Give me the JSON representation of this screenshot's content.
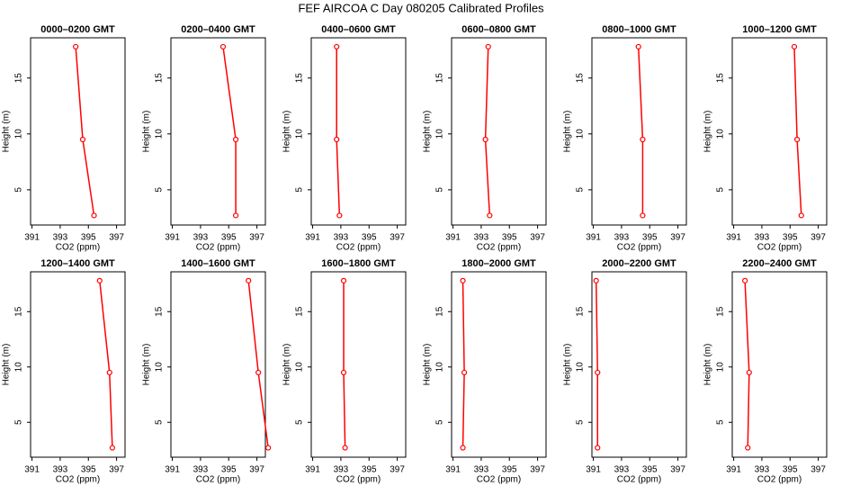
{
  "title": "FEF AIRCOA C  Day 080205  Calibrated Profiles",
  "chart_data": [
    {
      "type": "line",
      "title": "0000–0200 GMT",
      "xlabel": "CO2 (ppm)",
      "ylabel": "Height (m)",
      "color": "#ff0000",
      "x": [
        395.4,
        394.6,
        394.1
      ],
      "values": [
        2.7,
        9.5,
        17.8
      ],
      "xlim": [
        390.9,
        397.6
      ],
      "xticks": [
        391,
        393,
        395,
        397
      ],
      "ylim": [
        1.85,
        18.6
      ],
      "yticks": [
        5,
        10,
        15
      ]
    },
    {
      "type": "line",
      "title": "0200–0400 GMT",
      "xlabel": "CO2 (ppm)",
      "ylabel": "Height (m)",
      "color": "#ff0000",
      "x": [
        395.5,
        395.5,
        394.6
      ],
      "values": [
        2.7,
        9.5,
        17.8
      ],
      "xlim": [
        390.9,
        397.6
      ],
      "xticks": [
        391,
        393,
        395,
        397
      ],
      "ylim": [
        1.85,
        18.6
      ],
      "yticks": [
        5,
        10,
        15
      ]
    },
    {
      "type": "line",
      "title": "0400–0600 GMT",
      "xlabel": "CO2 (ppm)",
      "ylabel": "Height (m)",
      "color": "#ff0000",
      "x": [
        392.9,
        392.7,
        392.7
      ],
      "values": [
        2.7,
        9.5,
        17.8
      ],
      "xlim": [
        390.9,
        397.6
      ],
      "xticks": [
        391,
        393,
        395,
        397
      ],
      "ylim": [
        1.85,
        18.6
      ],
      "yticks": [
        5,
        10,
        15
      ]
    },
    {
      "type": "line",
      "title": "0600–0800 GMT",
      "xlabel": "CO2 (ppm)",
      "ylabel": "Height (m)",
      "color": "#ff0000",
      "x": [
        393.6,
        393.3,
        393.5
      ],
      "values": [
        2.7,
        9.5,
        17.8
      ],
      "xlim": [
        390.9,
        397.6
      ],
      "xticks": [
        391,
        393,
        395,
        397
      ],
      "ylim": [
        1.85,
        18.6
      ],
      "yticks": [
        5,
        10,
        15
      ]
    },
    {
      "type": "line",
      "title": "0800–1000 GMT",
      "xlabel": "CO2 (ppm)",
      "ylabel": "Height (m)",
      "color": "#ff0000",
      "x": [
        394.5,
        394.5,
        394.2
      ],
      "values": [
        2.7,
        9.5,
        17.8
      ],
      "xlim": [
        390.9,
        397.6
      ],
      "xticks": [
        391,
        393,
        395,
        397
      ],
      "ylim": [
        1.85,
        18.6
      ],
      "yticks": [
        5,
        10,
        15
      ]
    },
    {
      "type": "line",
      "title": "1000–1200 GMT",
      "xlabel": "CO2 (ppm)",
      "ylabel": "Height (m)",
      "color": "#ff0000",
      "x": [
        395.8,
        395.5,
        395.3
      ],
      "values": [
        2.7,
        9.5,
        17.8
      ],
      "xlim": [
        390.9,
        397.6
      ],
      "xticks": [
        391,
        393,
        395,
        397
      ],
      "ylim": [
        1.85,
        18.6
      ],
      "yticks": [
        5,
        10,
        15
      ]
    },
    {
      "type": "line",
      "title": "1200–1400 GMT",
      "xlabel": "CO2 (ppm)",
      "ylabel": "Height (m)",
      "color": "#ff0000",
      "x": [
        396.7,
        396.5,
        395.8
      ],
      "values": [
        2.7,
        9.5,
        17.8
      ],
      "xlim": [
        390.9,
        397.6
      ],
      "xticks": [
        391,
        393,
        395,
        397
      ],
      "ylim": [
        1.85,
        18.6
      ],
      "yticks": [
        5,
        10,
        15
      ]
    },
    {
      "type": "line",
      "title": "1400–1600 GMT",
      "xlabel": "CO2 (ppm)",
      "ylabel": "Height (m)",
      "color": "#ff0000",
      "x": [
        397.8,
        397.1,
        396.4
      ],
      "values": [
        2.7,
        9.5,
        17.8
      ],
      "xlim": [
        390.9,
        397.6
      ],
      "xticks": [
        391,
        393,
        395,
        397
      ],
      "ylim": [
        1.85,
        18.6
      ],
      "yticks": [
        5,
        10,
        15
      ]
    },
    {
      "type": "line",
      "title": "1600–1800 GMT",
      "xlabel": "CO2 (ppm)",
      "ylabel": "Height (m)",
      "color": "#ff0000",
      "x": [
        393.3,
        393.2,
        393.2
      ],
      "values": [
        2.7,
        9.5,
        17.8
      ],
      "xlim": [
        390.9,
        397.6
      ],
      "xticks": [
        391,
        393,
        395,
        397
      ],
      "ylim": [
        1.85,
        18.6
      ],
      "yticks": [
        5,
        10,
        15
      ]
    },
    {
      "type": "line",
      "title": "1800–2000 GMT",
      "xlabel": "CO2 (ppm)",
      "ylabel": "Height (m)",
      "color": "#ff0000",
      "x": [
        391.7,
        391.8,
        391.7
      ],
      "values": [
        2.7,
        9.5,
        17.8
      ],
      "xlim": [
        390.9,
        397.6
      ],
      "xticks": [
        391,
        393,
        395,
        397
      ],
      "ylim": [
        1.85,
        18.6
      ],
      "yticks": [
        5,
        10,
        15
      ]
    },
    {
      "type": "line",
      "title": "2000–2200 GMT",
      "xlabel": "CO2 (ppm)",
      "ylabel": "Height (m)",
      "color": "#ff0000",
      "x": [
        391.3,
        391.3,
        391.2
      ],
      "values": [
        2.7,
        9.5,
        17.8
      ],
      "xlim": [
        390.9,
        397.6
      ],
      "xticks": [
        391,
        393,
        395,
        397
      ],
      "ylim": [
        1.85,
        18.6
      ],
      "yticks": [
        5,
        10,
        15
      ]
    },
    {
      "type": "line",
      "title": "2200–2400 GMT",
      "xlabel": "CO2 (ppm)",
      "ylabel": "Height (m)",
      "color": "#ff0000",
      "x": [
        392.0,
        392.1,
        391.8
      ],
      "values": [
        2.7,
        9.5,
        17.8
      ],
      "xlim": [
        390.9,
        397.6
      ],
      "xticks": [
        391,
        393,
        395,
        397
      ],
      "ylim": [
        1.85,
        18.6
      ],
      "yticks": [
        5,
        10,
        15
      ]
    }
  ]
}
